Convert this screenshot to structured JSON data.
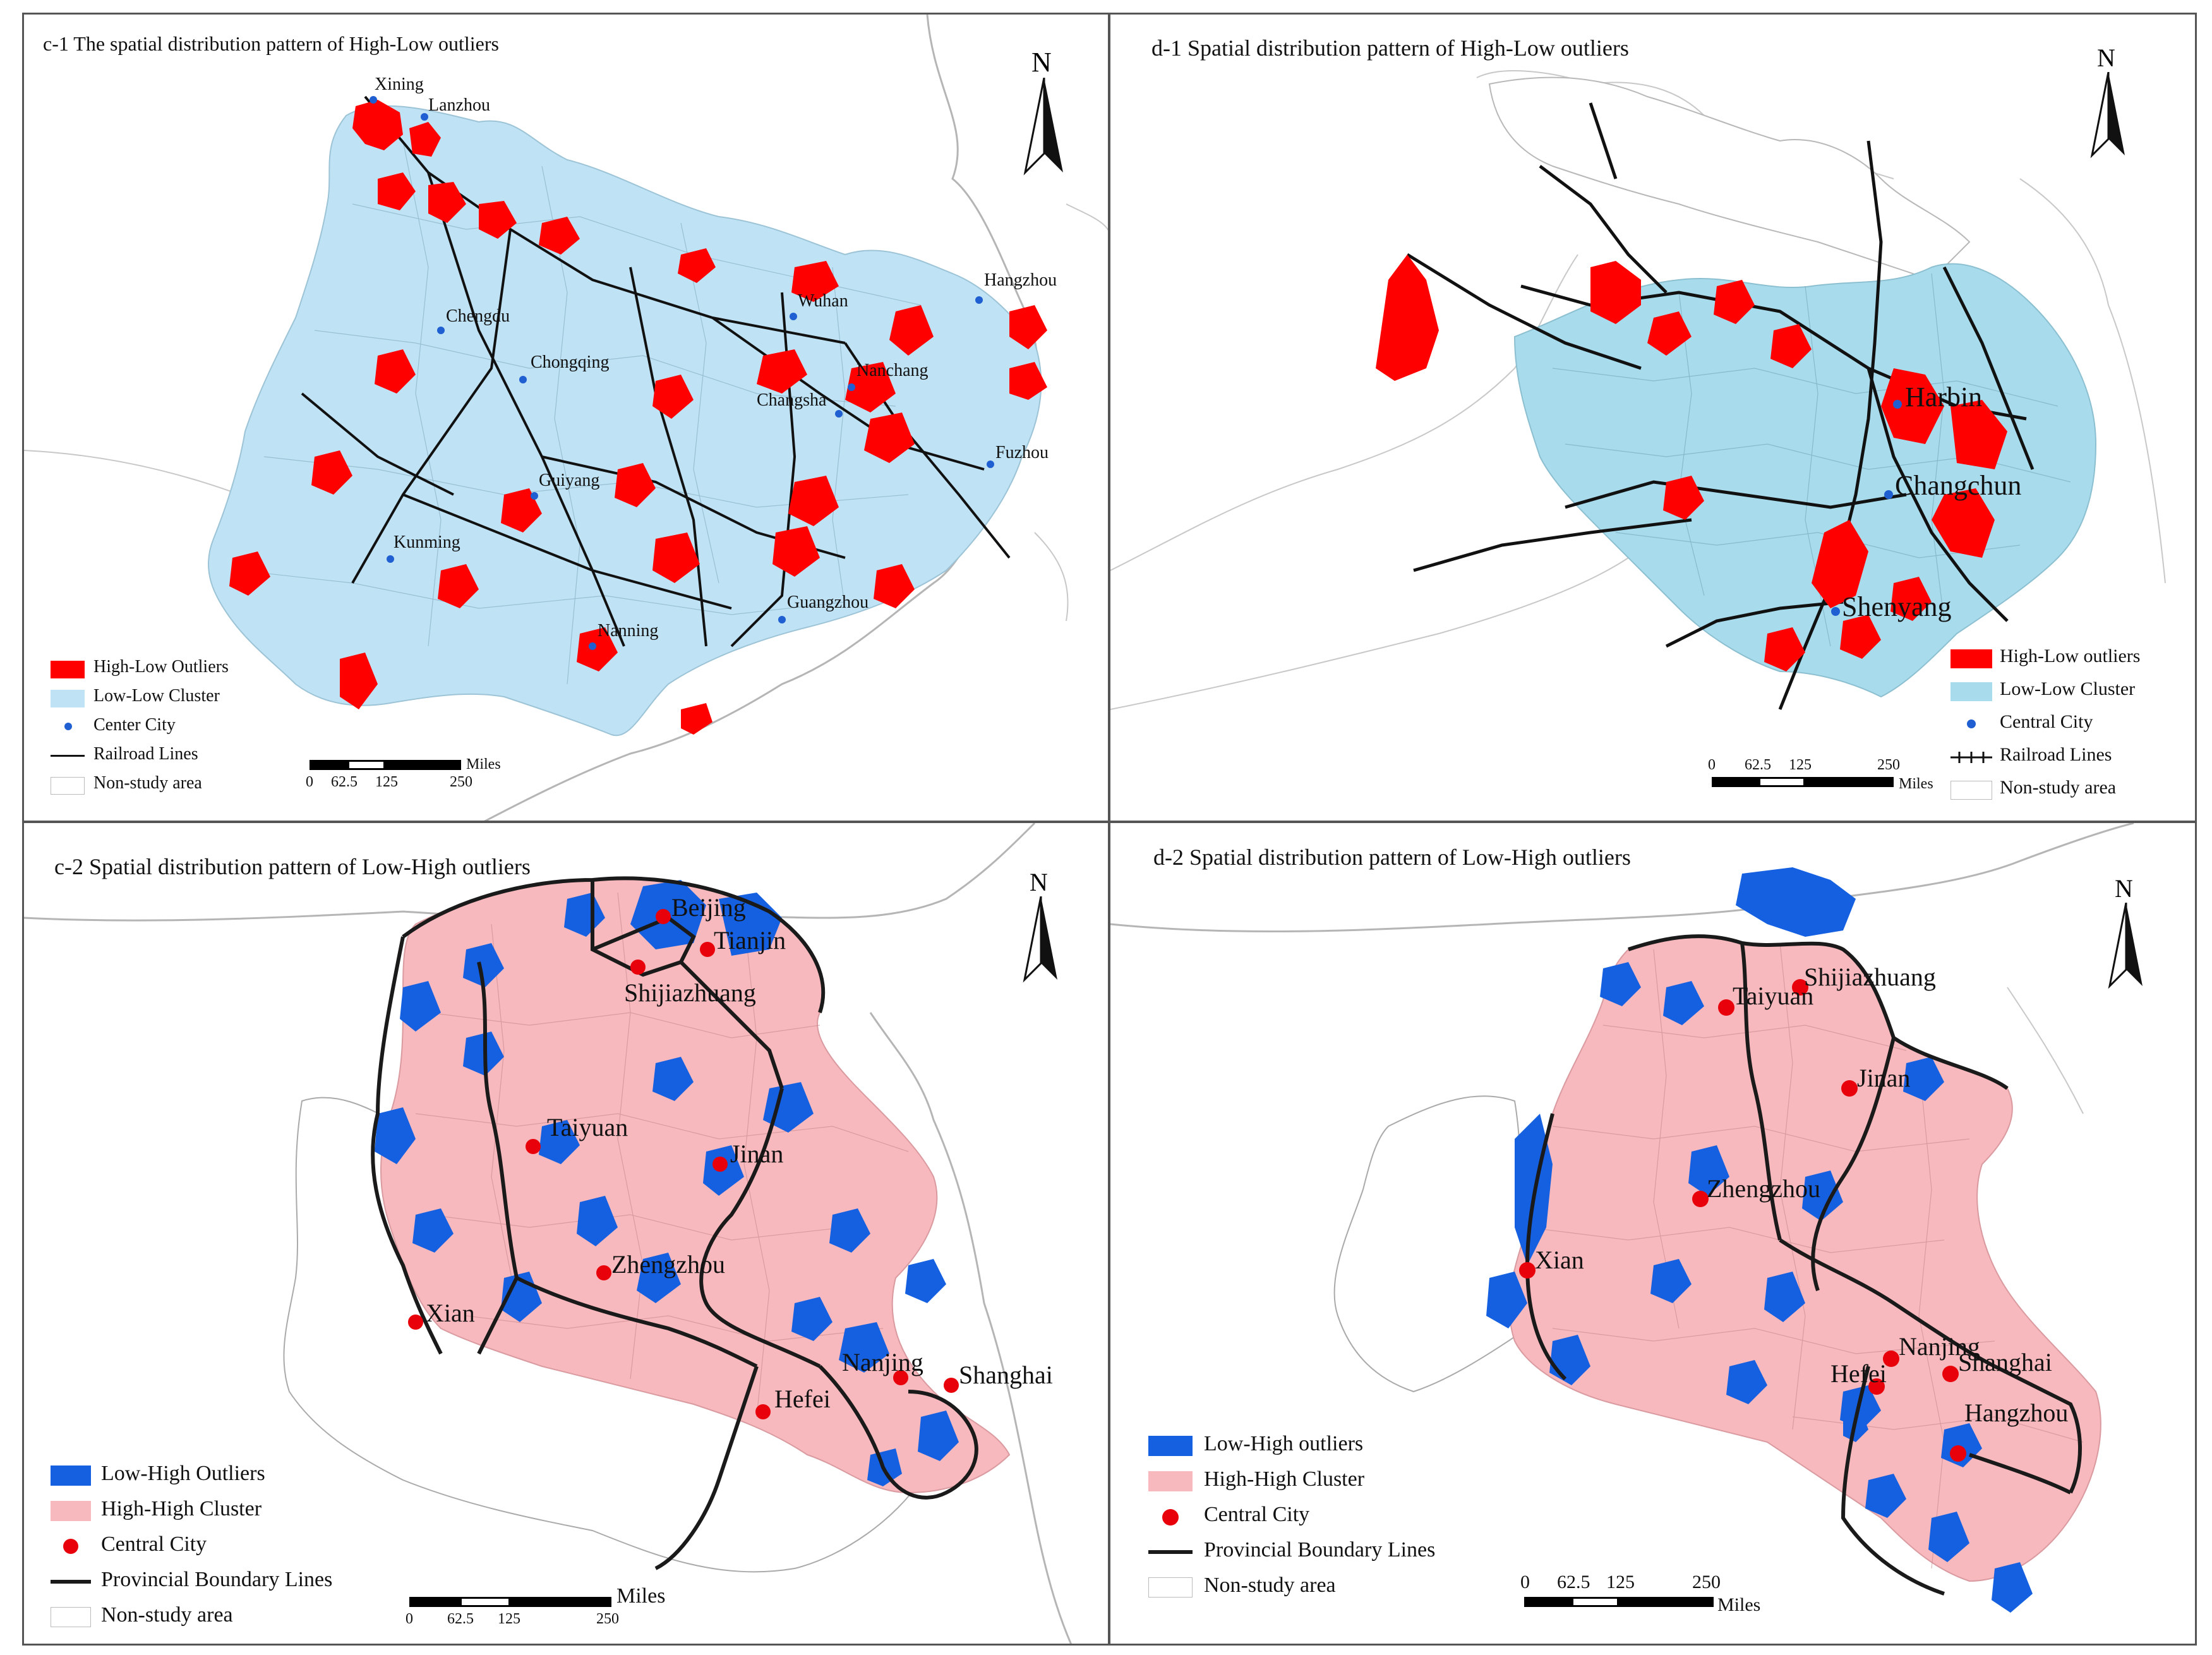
{
  "panels": {
    "c1": {
      "title": "c-1 The spatial distribution pattern of High-Low outliers",
      "north": "N",
      "cities": [
        "Xining",
        "Lanzhou",
        "Chengdu",
        "Chongqing",
        "Wuhan",
        "Hangzhou",
        "Nanchang",
        "Changsha",
        "Fuzhou",
        "Guiyang",
        "Kunming",
        "Nanning",
        "Guangzhou"
      ],
      "legend": [
        "High-Low Outliers",
        "Low-Low Cluster",
        "Center City",
        "Railroad Lines",
        "Non-study area"
      ],
      "scale": {
        "unit": "Miles",
        "ticks": [
          "0",
          "62.5",
          "125",
          "250"
        ]
      }
    },
    "d1": {
      "title": "d-1 Spatial distribution pattern of High-Low outliers",
      "north": "N",
      "cities": [
        "Harbin",
        "Changchun",
        "Shenyang"
      ],
      "legend": [
        "High-Low outliers",
        "Low-Low Cluster",
        "Central City",
        "Railroad Lines",
        "Non-study area"
      ],
      "scale": {
        "unit": "Miles",
        "ticks": [
          "0",
          "62.5",
          "125",
          "250"
        ]
      }
    },
    "c2": {
      "title": "c-2 Spatial distribution pattern of Low-High outliers",
      "north": "N",
      "cities": [
        "Beijing",
        "Tianjin",
        "Shijiazhuang",
        "Taiyuan",
        "Jinan",
        "Zhengzhou",
        "Xian",
        "Nanjing",
        "Shanghai",
        "Hefei"
      ],
      "legend": [
        "Low-High Outliers",
        "High-High Cluster",
        "Central City",
        "Provincial Boundary Lines",
        "Non-study area"
      ],
      "scale": {
        "unit": "Miles",
        "ticks": [
          "0",
          "62.5",
          "125",
          "250"
        ]
      }
    },
    "d2": {
      "title": "d-2 Spatial distribution pattern of Low-High outliers",
      "north": "N",
      "cities": [
        "Shijiazhuang",
        "Taiyuan",
        "Jinan",
        "Zhengzhou",
        "Xian",
        "Nanjing",
        "Shanghai",
        "Hefei",
        "Hangzhou"
      ],
      "legend": [
        "Low-High outliers",
        "High-High Cluster",
        "Central City",
        "Provincial Boundary Lines",
        "Non-study area"
      ],
      "scale": {
        "unit": "Miles",
        "ticks": [
          "0",
          "62.5",
          "125",
          "250"
        ]
      }
    }
  },
  "colors": {
    "high_low": "#ff0000",
    "low_low": "#bfe3f5",
    "low_high": "#1560e0",
    "high_high": "#f7b9bd",
    "center_city_blue": "#1f5fd1",
    "central_city_red": "#e8000b",
    "railroad": "#111111",
    "boundary": "#222222",
    "non_study": "#ffffff",
    "outline": "#b9b9b9"
  }
}
